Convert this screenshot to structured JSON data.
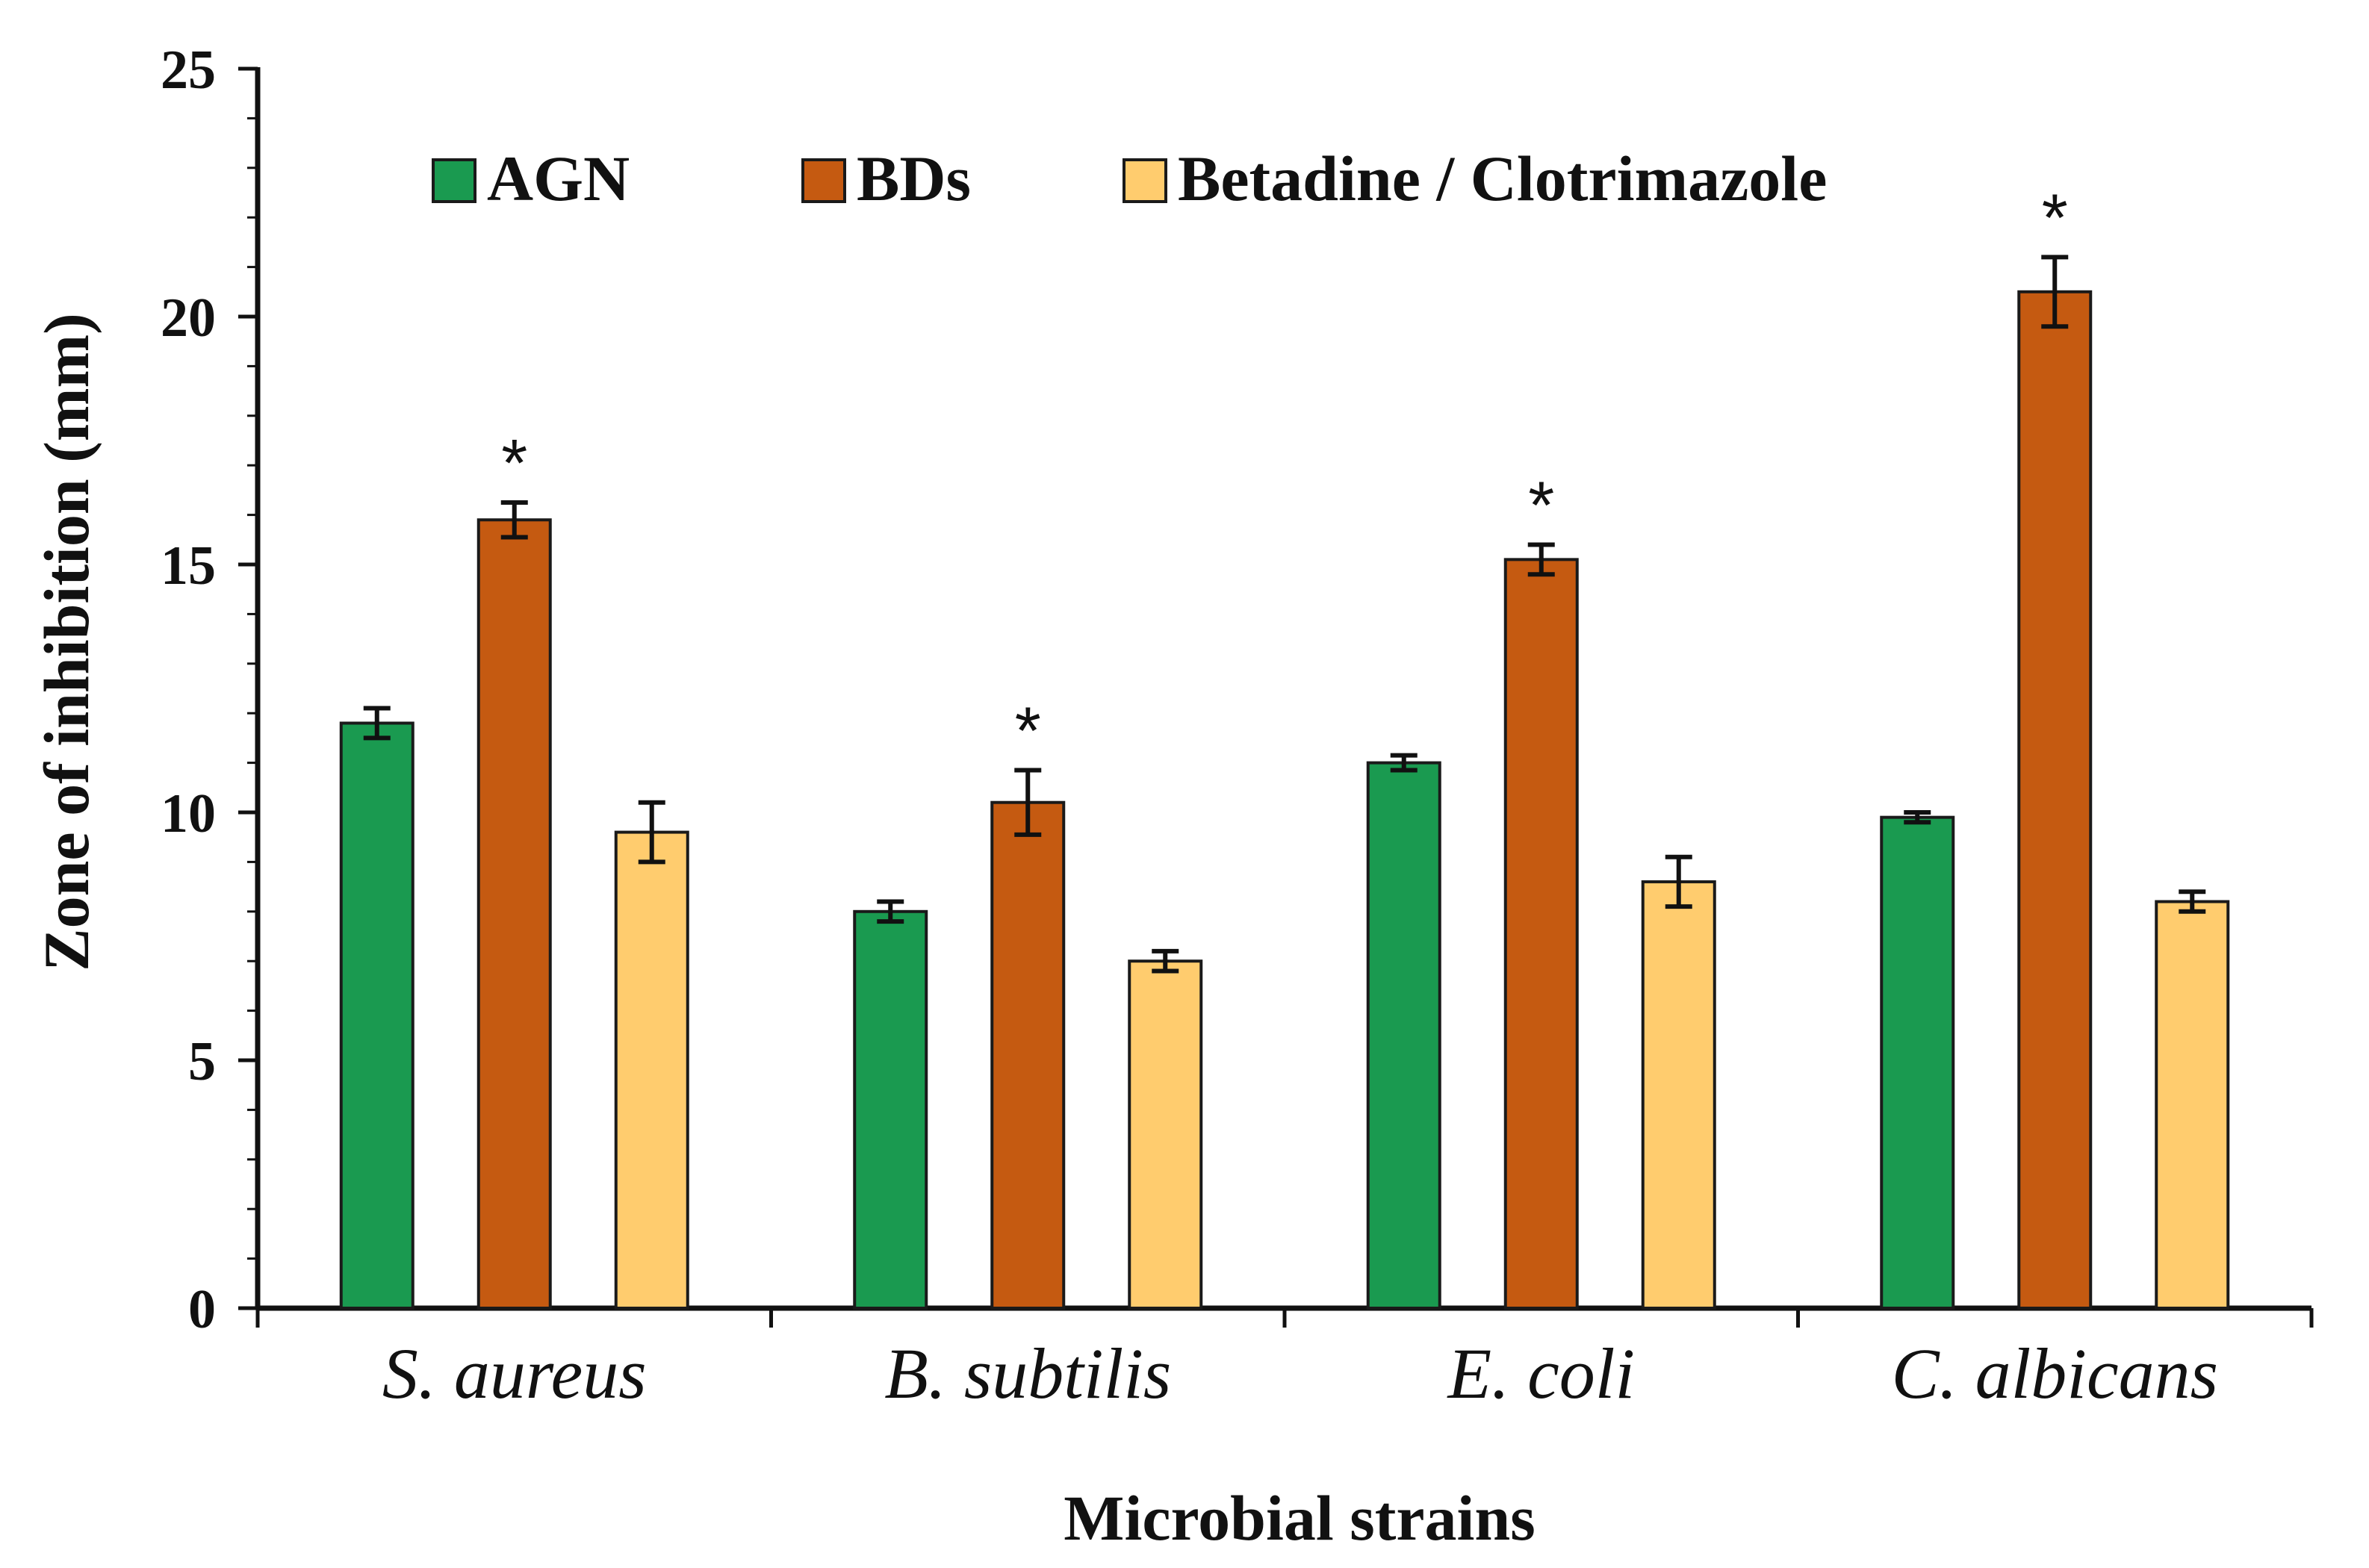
{
  "chart_data": {
    "type": "bar",
    "title": "",
    "xlabel": "Microbial strains",
    "ylabel": "Zone of inhibition (mm)",
    "ylim": [
      0,
      25
    ],
    "yticks": [
      0,
      5,
      10,
      15,
      20,
      25
    ],
    "legend_position": "top",
    "categories": [
      "S. aureus",
      "B. subtilis",
      "E. coli",
      "C. albicans"
    ],
    "series": [
      {
        "name": "AGN",
        "color": "#1a9a50",
        "values": [
          11.8,
          8.0,
          11.0,
          9.9
        ],
        "errors": [
          0.3,
          0.2,
          0.15,
          0.1
        ]
      },
      {
        "name": "BDs",
        "color": "#c55a11",
        "values": [
          15.9,
          10.2,
          15.1,
          20.5
        ],
        "errors": [
          0.35,
          0.65,
          0.3,
          0.7
        ]
      },
      {
        "name": "Betadine / Clotrimazole",
        "color": "#ffcc6e",
        "values": [
          9.6,
          7.0,
          8.6,
          8.2
        ],
        "errors": [
          0.6,
          0.2,
          0.5,
          0.2
        ]
      }
    ],
    "annotations": [
      {
        "series": "BDs",
        "category": "S. aureus",
        "text": "*"
      },
      {
        "series": "BDs",
        "category": "B. subtilis",
        "text": "*"
      },
      {
        "series": "BDs",
        "category": "E. coli",
        "text": "*"
      },
      {
        "series": "BDs",
        "category": "C. albicans",
        "text": "*"
      }
    ]
  }
}
